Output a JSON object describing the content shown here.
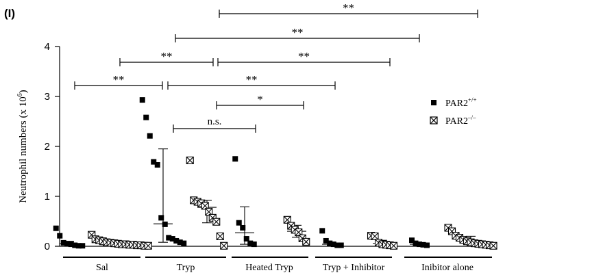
{
  "panel_label": "(I)",
  "chart_data": {
    "type": "scatter",
    "title": "",
    "xlabel": "",
    "ylabel": "Neutrophil numbers (x 10",
    "ylabel_exponent": "6",
    "ylabel_close": ")",
    "ylim": [
      0,
      4
    ],
    "yticks": [
      "0",
      "1",
      "2",
      "3",
      "4"
    ],
    "grid": false,
    "legend_position": "top-right",
    "groups": [
      "Sal",
      "Tryp",
      "Heated Tryp",
      "Tryp + Inhibitor",
      "Inibitor alone"
    ],
    "legend": {
      "wt": {
        "label_base": "PAR2",
        "label_sup": "+/+",
        "marker": "filled-square"
      },
      "ko": {
        "label_base": "PAR2",
        "label_sup": "–/–",
        "marker": "crossed-square"
      }
    },
    "series": [
      {
        "key": "wt",
        "marker": "filled-square",
        "points": [
          {
            "group": 0,
            "values": [
              0.36,
              0.21,
              0.07,
              0.05,
              0.04,
              0.02,
              0.01,
              0.01
            ]
          },
          {
            "group": 1,
            "values": [
              2.93,
              2.58,
              2.21,
              1.69,
              1.63,
              0.57,
              0.44,
              0.17,
              0.15,
              0.11,
              0.08,
              0.06
            ]
          },
          {
            "group": 2,
            "values": [
              1.75,
              0.47,
              0.37,
              0.15,
              0.06,
              0.04
            ]
          },
          {
            "group": 3,
            "values": [
              0.31,
              0.11,
              0.06,
              0.04,
              0.02,
              0.02
            ]
          },
          {
            "group": 4,
            "values": [
              0.12,
              0.06,
              0.04,
              0.03,
              0.02
            ]
          }
        ],
        "summary": [
          {
            "group": 0,
            "median": 0.05,
            "lower": 0.01,
            "upper": 0.1
          },
          {
            "group": 1,
            "median": 0.45,
            "lower": 0.08,
            "upper": 1.95
          },
          {
            "group": 2,
            "median": 0.27,
            "lower": 0.04,
            "upper": 0.79
          },
          {
            "group": 3,
            "median": 0.04,
            "lower": 0.02,
            "upper": 0.07
          },
          {
            "group": 4,
            "median": 0.04,
            "lower": 0.02,
            "upper": 0.06
          }
        ]
      },
      {
        "key": "ko",
        "marker": "crossed-square",
        "points": [
          {
            "group": 0,
            "values": [
              0.23,
              0.14,
              0.12,
              0.1,
              0.08,
              0.07,
              0.06,
              0.05,
              0.04,
              0.04,
              0.03,
              0.03,
              0.02,
              0.02,
              0.01,
              0.01
            ]
          },
          {
            "group": 1,
            "values": [
              1.72,
              0.92,
              0.89,
              0.86,
              0.81,
              0.69,
              0.57,
              0.49,
              0.2,
              0.01
            ]
          },
          {
            "group": 2,
            "values": [
              0.53,
              0.41,
              0.33,
              0.28,
              0.16,
              0.09
            ]
          },
          {
            "group": 3,
            "values": [
              0.21,
              0.2,
              0.07,
              0.04,
              0.03,
              0.02,
              0.01
            ]
          },
          {
            "group": 4,
            "values": [
              0.37,
              0.3,
              0.21,
              0.17,
              0.13,
              0.1,
              0.08,
              0.06,
              0.05,
              0.04,
              0.03,
              0.02,
              0.01
            ]
          }
        ],
        "summary": [
          {
            "group": 0,
            "median": 0.05,
            "lower": 0.02,
            "upper": 0.1
          },
          {
            "group": 1,
            "median": 0.78,
            "lower": 0.47,
            "upper": 0.92
          },
          {
            "group": 2,
            "median": 0.3,
            "lower": 0.18,
            "upper": 0.42
          },
          {
            "group": 3,
            "median": 0.06,
            "lower": 0.02,
            "upper": 0.12
          },
          {
            "group": 4,
            "median": 0.1,
            "lower": 0.03,
            "upper": 0.2
          }
        ]
      }
    ],
    "comparisons": [
      {
        "from": "Tryp PAR2+/+",
        "to": "Inibitor alone PAR2-/-",
        "label": "**"
      },
      {
        "from": "Tryp PAR2+/+",
        "to": "Inibitor alone PAR2+/+",
        "label": "**"
      },
      {
        "from": "Sal PAR2-/-",
        "to": "Tryp PAR2-/-",
        "label": "**"
      },
      {
        "from": "Tryp PAR2-/-",
        "to": "Tryp + Inhibitor PAR2-/-",
        "label": "**"
      },
      {
        "from": "Sal PAR2+/+",
        "to": "Tryp PAR2+/+",
        "label": "**"
      },
      {
        "from": "Tryp PAR2+/+",
        "to": "Tryp + Inhibitor PAR2+/+",
        "label": "**"
      },
      {
        "from": "Tryp PAR2-/-",
        "to": "Heated Tryp PAR2-/-",
        "label": "*"
      },
      {
        "from": "Tryp PAR2+/+",
        "to": "Heated Tryp PAR2+/+",
        "label": "n.s."
      }
    ]
  }
}
